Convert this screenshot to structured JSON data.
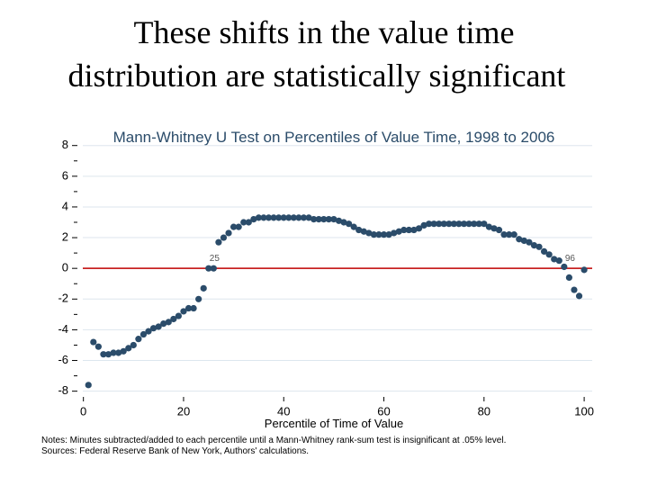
{
  "slide_title": [
    "These shifts in the value time",
    "distribution are statistically significant"
  ],
  "chart_data": {
    "type": "scatter",
    "title": "Mann-Whitney U Test on Percentiles of Value Time, 1998 to 2006",
    "x_label": "Percentile of Time of Value",
    "x": [
      1,
      2,
      3,
      4,
      5,
      6,
      7,
      8,
      9,
      10,
      11,
      12,
      13,
      14,
      15,
      16,
      17,
      18,
      19,
      20,
      21,
      22,
      23,
      24,
      25,
      26,
      27,
      28,
      29,
      30,
      31,
      32,
      33,
      34,
      35,
      36,
      37,
      38,
      39,
      40,
      41,
      42,
      43,
      44,
      45,
      46,
      47,
      48,
      49,
      50,
      51,
      52,
      53,
      54,
      55,
      56,
      57,
      58,
      59,
      60,
      61,
      62,
      63,
      64,
      65,
      66,
      67,
      68,
      69,
      70,
      71,
      72,
      73,
      74,
      75,
      76,
      77,
      78,
      79,
      80,
      81,
      82,
      83,
      84,
      85,
      86,
      87,
      88,
      89,
      90,
      91,
      92,
      93,
      94,
      95,
      96,
      97,
      98,
      99,
      100
    ],
    "series": [
      {
        "color": "#2b4c6a",
        "values": [
          -7.6,
          -4.8,
          -5.1,
          -5.6,
          -5.6,
          -5.5,
          -5.5,
          -5.4,
          -5.2,
          -5.0,
          -4.6,
          -4.3,
          -4.1,
          -3.9,
          -3.8,
          -3.6,
          -3.5,
          -3.3,
          -3.1,
          -2.8,
          -2.6,
          -2.6,
          -2.0,
          -1.3,
          0,
          0,
          1.7,
          2.0,
          2.3,
          2.7,
          2.7,
          3.0,
          3.0,
          3.2,
          3.3,
          3.3,
          3.3,
          3.3,
          3.3,
          3.3,
          3.3,
          3.3,
          3.3,
          3.3,
          3.3,
          3.2,
          3.2,
          3.2,
          3.2,
          3.2,
          3.1,
          3.0,
          2.9,
          2.7,
          2.5,
          2.4,
          2.3,
          2.2,
          2.2,
          2.2,
          2.2,
          2.3,
          2.4,
          2.5,
          2.5,
          2.5,
          2.6,
          2.8,
          2.9,
          2.9,
          2.9,
          2.9,
          2.9,
          2.9,
          2.9,
          2.9,
          2.9,
          2.9,
          2.9,
          2.9,
          2.7,
          2.6,
          2.5,
          2.2,
          2.2,
          2.2,
          1.9,
          1.8,
          1.7,
          1.5,
          1.4,
          1.1,
          0.9,
          0.6,
          0.5,
          0.1,
          -0.6,
          -1.4,
          -1.8,
          -0.1
        ]
      }
    ],
    "xlim": [
      -1.2,
      101.6
    ],
    "ylim": [
      -8.9,
      8.1
    ],
    "xticks": [
      0,
      20,
      40,
      60,
      80,
      100
    ],
    "yticks": [
      -8,
      -6,
      -4,
      -2,
      0,
      2,
      4,
      6,
      8
    ],
    "yticks_minor": [
      -7,
      -5,
      -3,
      -1,
      1,
      3,
      5,
      7
    ],
    "grid": true,
    "reference_line": {
      "y": 0,
      "color": "#c00000"
    },
    "annotations": [
      {
        "text": "25",
        "x": 25,
        "y": 0
      },
      {
        "text": "96",
        "x": 96,
        "y": 0
      }
    ],
    "notes": [
      "Notes: Minutes subtracted/added to each percentile until a Mann-Whitney rank-sum test is insignificant at .05% level.",
      "Sources: Federal Reserve Bank of New York, Authors' calculations."
    ]
  }
}
